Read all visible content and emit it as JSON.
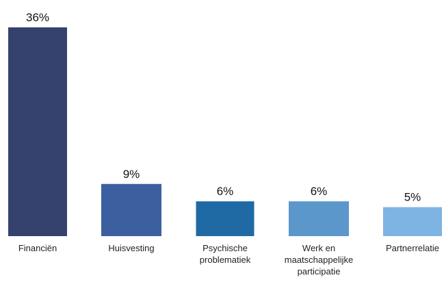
{
  "chart_data": {
    "type": "bar",
    "categories": [
      [
        "Financiën"
      ],
      [
        "Huisvesting"
      ],
      [
        "Psychische",
        "problematiek"
      ],
      [
        "Werk en",
        "maatschappelijke",
        "participatie"
      ],
      [
        "Partnerrelatie"
      ]
    ],
    "values": [
      36,
      9,
      6,
      6,
      5
    ],
    "value_labels": [
      "36%",
      "9%",
      "6%",
      "6%",
      "5%"
    ],
    "colors": [
      "#34426d",
      "#3c5fa0",
      "#1f6aa4",
      "#5c97cc",
      "#7db4e4"
    ],
    "ylim": [
      0,
      36
    ],
    "grid": false,
    "title": "",
    "xlabel": "",
    "ylabel": ""
  }
}
